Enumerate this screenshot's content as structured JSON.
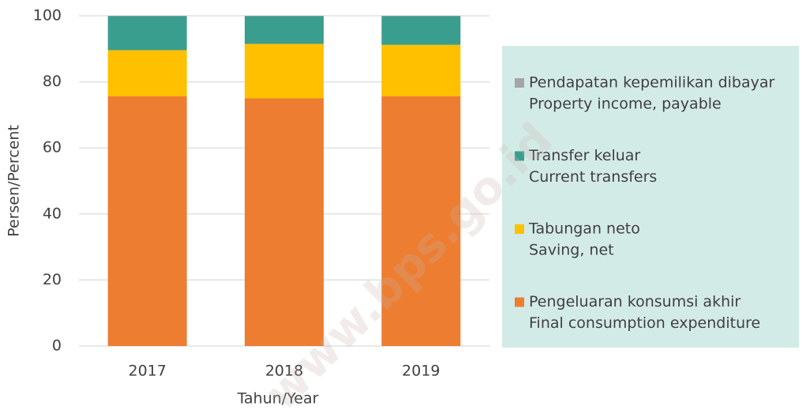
{
  "chart_data": {
    "type": "stacked_bar",
    "categories": [
      "2017",
      "2018",
      "2019"
    ],
    "series": [
      {
        "name": [
          "Pengeluaran konsumsi akhir",
          "Final consumption expenditure"
        ],
        "color": "#ed7d31",
        "values": [
          75.6,
          75.0,
          75.6
        ]
      },
      {
        "name": [
          "Tabungan neto",
          "Saving, net"
        ],
        "color": "#ffc000",
        "values": [
          14.0,
          16.5,
          15.6
        ]
      },
      {
        "name": [
          "Transfer keluar",
          "Current transfers"
        ],
        "color": "#3a9e8f",
        "values": [
          10.3,
          8.4,
          8.7
        ]
      },
      {
        "name": [
          "Pendapatan kepemilikan dibayar",
          "Property income, payable"
        ],
        "color": "#a5a5a5",
        "values": [
          0.1,
          0.1,
          0.1
        ]
      }
    ],
    "ylim": [
      0,
      100
    ],
    "yticks": [
      0,
      20,
      40,
      60,
      80,
      100
    ],
    "grid": true,
    "ylabel": "Persen/Percent",
    "xlabel": "Tahun/Year",
    "legend": "right",
    "watermark": "www.bps.go.id"
  }
}
